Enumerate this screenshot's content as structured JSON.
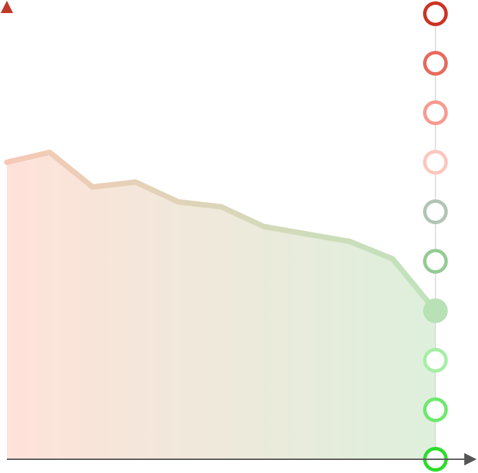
{
  "chart_data": {
    "type": "area",
    "title": "",
    "xlabel": "",
    "ylabel": "",
    "x": [
      0,
      1,
      2,
      3,
      4,
      5,
      6,
      7,
      8,
      9,
      10
    ],
    "values": [
      6.0,
      6.2,
      5.5,
      5.6,
      5.2,
      5.1,
      4.7,
      4.55,
      4.4,
      4.05,
      3.0
    ],
    "xlim": [
      0,
      10
    ],
    "ylim": [
      0,
      9
    ],
    "level_markers": [
      9,
      8,
      7,
      6,
      5,
      4,
      3,
      2,
      1,
      0
    ],
    "current_level": 3,
    "grid": false,
    "legend": "none",
    "colors": {
      "area_start": "#ffe2da",
      "area_end": "#ddf0dc",
      "line_start": "#f6c9b6",
      "line_end": "#bfe3bc",
      "y_axis_top": "#c0392b",
      "y_axis_bottom": "#4caf50",
      "x_axis": "#555555",
      "marker_rail": "#d9d9d9",
      "markers": [
        "#cc3322",
        "#e86a5c",
        "#f79a90",
        "#fcc7bd",
        "#b2c4b4",
        "#94cb94",
        "#b8e2b6",
        "#a6eea6",
        "#6ee86e",
        "#2bdc2b"
      ]
    }
  }
}
